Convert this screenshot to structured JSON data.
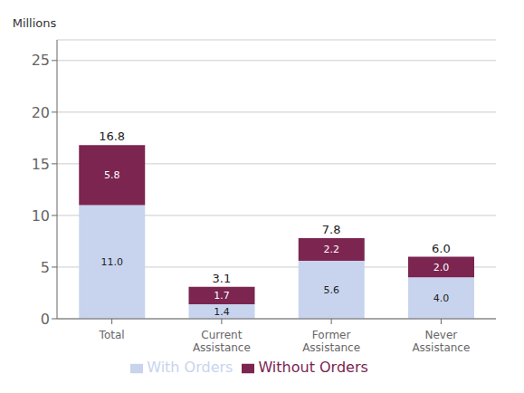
{
  "chart_data": {
    "type": "bar",
    "stacked": true,
    "categories": [
      "Total",
      "Current\nAssistance",
      "Former\nAssistance",
      "Never\nAssistance"
    ],
    "series": [
      {
        "name": "With Orders",
        "color": "#c8d4ee",
        "values": [
          11.0,
          1.4,
          5.6,
          4.0
        ],
        "value_labels": [
          "11.0",
          "1.4",
          "5.6",
          "4.0"
        ]
      },
      {
        "name": "Without Orders",
        "color": "#7b2550",
        "values": [
          5.8,
          1.7,
          2.2,
          2.0
        ],
        "value_labels": [
          "5.8",
          "1.7",
          "2.2",
          "2.0"
        ]
      }
    ],
    "totals": [
      16.8,
      3.1,
      7.8,
      6.0
    ],
    "total_labels": [
      "16.8",
      "3.1",
      "7.8",
      "6.0"
    ],
    "ylabel": "Millions",
    "ylim": [
      0,
      27
    ],
    "yticks": [
      0,
      5,
      10,
      15,
      20,
      25
    ],
    "grid": true,
    "legend": "bottom",
    "data_labels": true
  }
}
